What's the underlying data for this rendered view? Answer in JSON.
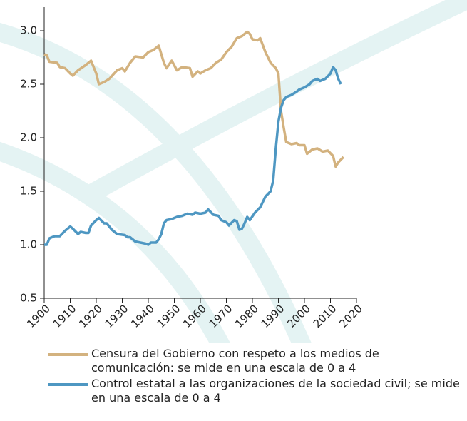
{
  "chart_data": {
    "type": "line",
    "xlim": [
      1900,
      2020
    ],
    "xticks": [
      1900,
      1910,
      1920,
      1930,
      1940,
      1950,
      1960,
      1970,
      1980,
      1990,
      2000,
      2010,
      2020
    ],
    "ylim": [
      0.5,
      3.22
    ],
    "yticks": [
      0.5,
      {
        "value": 1,
        "label": "1.0"
      },
      1.5,
      {
        "value": 2,
        "label": "2.0"
      },
      2.5,
      {
        "value": 3,
        "label": "3.0"
      }
    ],
    "series": [
      {
        "name": "Censura del Gobierno con respeto a los medios de comunicación: se mide en una escala de 0 a 4",
        "color": "#d3b27f",
        "x": [
          1900,
          1901,
          1902,
          1905,
          1906,
          1908,
          1910,
          1911,
          1913,
          1916,
          1918,
          1920,
          1921,
          1923,
          1925,
          1928,
          1930,
          1931,
          1933,
          1935,
          1938,
          1940,
          1942,
          1944,
          1946,
          1947,
          1949,
          1951,
          1953,
          1956,
          1957,
          1959,
          1960,
          1962,
          1964,
          1966,
          1968,
          1970,
          1972,
          1974,
          1976,
          1978,
          1979,
          1980,
          1982,
          1983,
          1985,
          1987,
          1989,
          1990,
          1991,
          1992,
          1993,
          1995,
          1997,
          1998,
          2000,
          2001,
          2003,
          2005,
          2007,
          2009,
          2011,
          2012,
          2013,
          2015
        ],
        "values": [
          2.78,
          2.77,
          2.71,
          2.7,
          2.66,
          2.65,
          2.6,
          2.58,
          2.63,
          2.68,
          2.72,
          2.6,
          2.5,
          2.52,
          2.55,
          2.63,
          2.65,
          2.62,
          2.7,
          2.76,
          2.75,
          2.8,
          2.82,
          2.86,
          2.7,
          2.65,
          2.72,
          2.63,
          2.66,
          2.65,
          2.57,
          2.62,
          2.6,
          2.63,
          2.65,
          2.7,
          2.73,
          2.8,
          2.85,
          2.93,
          2.95,
          2.99,
          2.97,
          2.92,
          2.91,
          2.93,
          2.8,
          2.7,
          2.65,
          2.6,
          2.25,
          2.1,
          1.96,
          1.94,
          1.95,
          1.93,
          1.93,
          1.85,
          1.89,
          1.9,
          1.87,
          1.88,
          1.83,
          1.73,
          1.77,
          1.82
        ]
      },
      {
        "name": "Control estatal a las organizaciones de la sociedad civil; se mide en una escala de 0 a 4",
        "color": "#4e97c2",
        "x": [
          1900,
          1901,
          1902,
          1904,
          1906,
          1908,
          1910,
          1911,
          1913,
          1914,
          1916,
          1917,
          1918,
          1920,
          1921,
          1923,
          1924,
          1926,
          1928,
          1931,
          1932,
          1933,
          1935,
          1937,
          1939,
          1940,
          1941,
          1943,
          1944,
          1945,
          1946,
          1947,
          1949,
          1951,
          1953,
          1955,
          1957,
          1958,
          1960,
          1962,
          1963,
          1965,
          1967,
          1968,
          1970,
          1971,
          1973,
          1974,
          1975,
          1976,
          1977,
          1978,
          1979,
          1981,
          1983,
          1985,
          1987,
          1988,
          1989,
          1990,
          1991,
          1992,
          1993,
          1995,
          1997,
          1998,
          2000,
          2002,
          2003,
          2005,
          2006,
          2008,
          2010,
          2011,
          2012,
          2013,
          2014
        ],
        "values": [
          1.0,
          1.0,
          1.06,
          1.08,
          1.08,
          1.13,
          1.17,
          1.15,
          1.1,
          1.12,
          1.11,
          1.11,
          1.18,
          1.23,
          1.25,
          1.2,
          1.2,
          1.14,
          1.1,
          1.09,
          1.07,
          1.07,
          1.03,
          1.02,
          1.01,
          1.0,
          1.02,
          1.02,
          1.05,
          1.1,
          1.2,
          1.23,
          1.24,
          1.26,
          1.27,
          1.29,
          1.28,
          1.3,
          1.29,
          1.3,
          1.33,
          1.28,
          1.27,
          1.23,
          1.21,
          1.18,
          1.23,
          1.22,
          1.14,
          1.15,
          1.2,
          1.26,
          1.23,
          1.3,
          1.35,
          1.45,
          1.5,
          1.6,
          1.9,
          2.15,
          2.28,
          2.35,
          2.38,
          2.4,
          2.43,
          2.45,
          2.47,
          2.5,
          2.53,
          2.55,
          2.53,
          2.55,
          2.6,
          2.66,
          2.63,
          2.55,
          2.5
        ]
      }
    ]
  }
}
